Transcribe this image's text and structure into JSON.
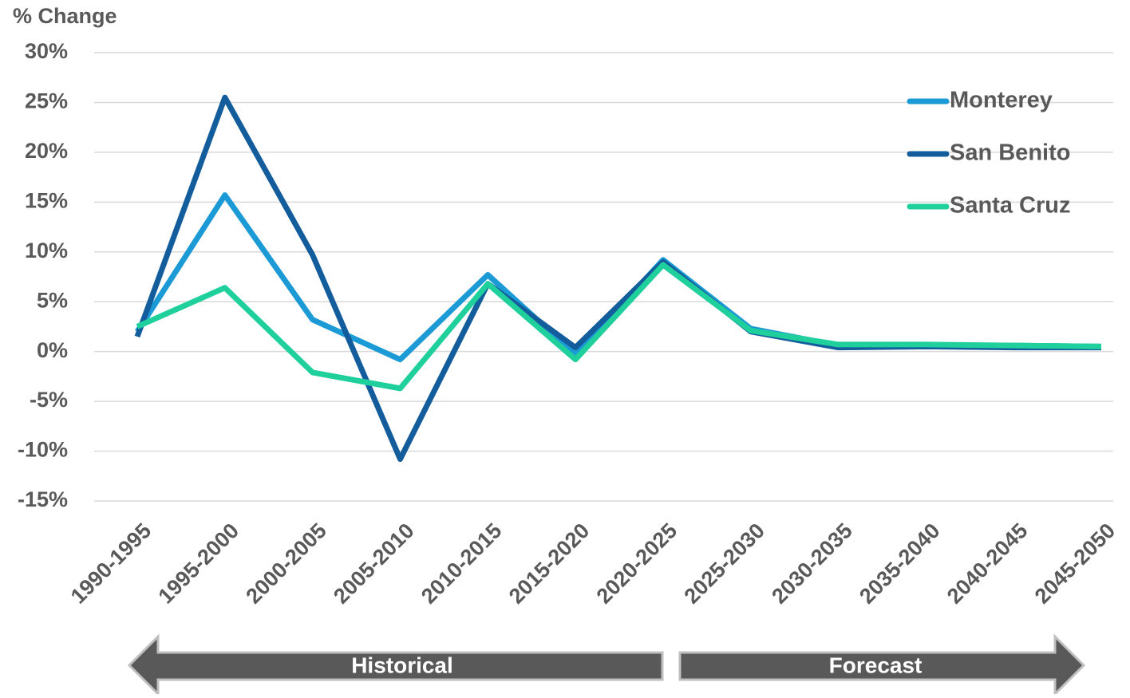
{
  "chart_data": {
    "type": "line",
    "y_label": "% Change",
    "categories": [
      "1990-1995",
      "1995-2000",
      "2000-2005",
      "2005-2010",
      "2010-2015",
      "2015-2020",
      "2020-2025",
      "2025-2030",
      "2030-2035",
      "2035-2040",
      "2040-2045",
      "2045-2050"
    ],
    "series": [
      {
        "name": "Monterey",
        "color": "#1b9ad6",
        "values": [
          2.0,
          15.7,
          3.2,
          -0.8,
          7.7,
          -0.3,
          9.2,
          2.3,
          0.6,
          0.6,
          0.6,
          0.5
        ]
      },
      {
        "name": "San Benito",
        "color": "#135d9c",
        "values": [
          1.5,
          25.5,
          9.7,
          -10.8,
          6.8,
          0.4,
          9.0,
          2.0,
          0.4,
          0.5,
          0.4,
          0.4
        ]
      },
      {
        "name": "Santa Cruz",
        "color": "#1fd09c",
        "values": [
          2.5,
          6.4,
          -2.1,
          -3.7,
          6.8,
          -0.8,
          8.7,
          2.1,
          0.7,
          0.7,
          0.6,
          0.5
        ]
      }
    ],
    "ylim": [
      -15,
      30
    ],
    "yticks": [
      {
        "value": -15,
        "label": "-15%"
      },
      {
        "value": -10,
        "label": "-10%"
      },
      {
        "value": -5,
        "label": "-5%"
      },
      {
        "value": 0,
        "label": "0%"
      },
      {
        "value": 5,
        "label": "5%"
      },
      {
        "value": 10,
        "label": "10%"
      },
      {
        "value": 15,
        "label": "15%"
      },
      {
        "value": 20,
        "label": "20%"
      },
      {
        "value": 25,
        "label": "25%"
      },
      {
        "value": 30,
        "label": "30%"
      }
    ],
    "grid": true,
    "legend": "upper right",
    "annotations": [
      "Historical",
      "Forecast"
    ]
  }
}
